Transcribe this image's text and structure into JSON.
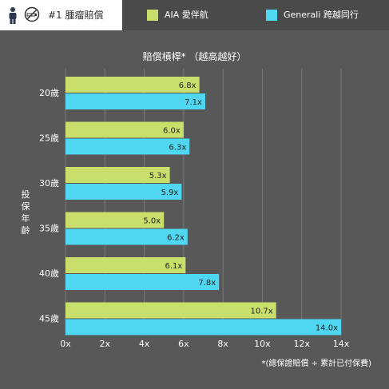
{
  "header": {
    "tab_label": "#1 腫瘤賠償",
    "icons": [
      "person-icon",
      "no-smoking-icon"
    ]
  },
  "colors": {
    "background": "#585858",
    "header_bg": "#4a4a4a",
    "aia": "#c8e06b",
    "generali": "#4fd6f0",
    "grid": "#7a7a7a"
  },
  "chart_data": {
    "type": "bar",
    "orientation": "horizontal",
    "title": "賠償槓桿*  （越高越好）",
    "ylabel": "投保年齡",
    "xlabel": "",
    "categories": [
      "20歲",
      "25歲",
      "30歲",
      "35歲",
      "40歲",
      "45歲"
    ],
    "series": [
      {
        "name": "AIA 愛伴航",
        "values": [
          6.8,
          6.0,
          5.3,
          5.0,
          6.1,
          10.7
        ],
        "labels": [
          "6.8x",
          "6.0x",
          "5.3x",
          "5.0x",
          "6.1x",
          "10.7x"
        ]
      },
      {
        "name": "Generali 跨越同行",
        "values": [
          7.1,
          6.3,
          5.9,
          6.2,
          7.8,
          14.0
        ],
        "labels": [
          "7.1x",
          "6.3x",
          "5.9x",
          "6.2x",
          "7.8x",
          "14.0x"
        ]
      }
    ],
    "xlim": [
      0,
      14
    ],
    "xticks": [
      0,
      2,
      4,
      6,
      8,
      10,
      12,
      14
    ],
    "xtick_labels": [
      "0x",
      "2x",
      "4x",
      "6x",
      "8x",
      "10x",
      "12x",
      "14x"
    ],
    "grid": true,
    "legend_position": "top"
  },
  "footnote": "*(總保證賠償 ÷ 累計已付保費)"
}
